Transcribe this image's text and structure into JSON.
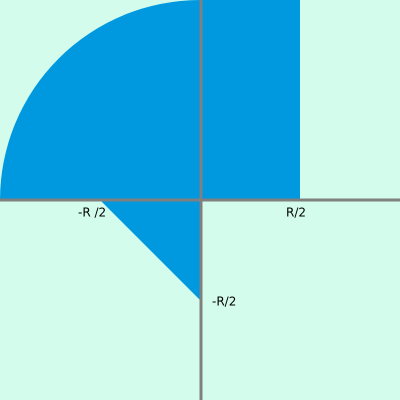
{
  "labels": {
    "x_negative": "-R /2",
    "x_positive": "R/2",
    "y_negative": "-R/2"
  }
}
